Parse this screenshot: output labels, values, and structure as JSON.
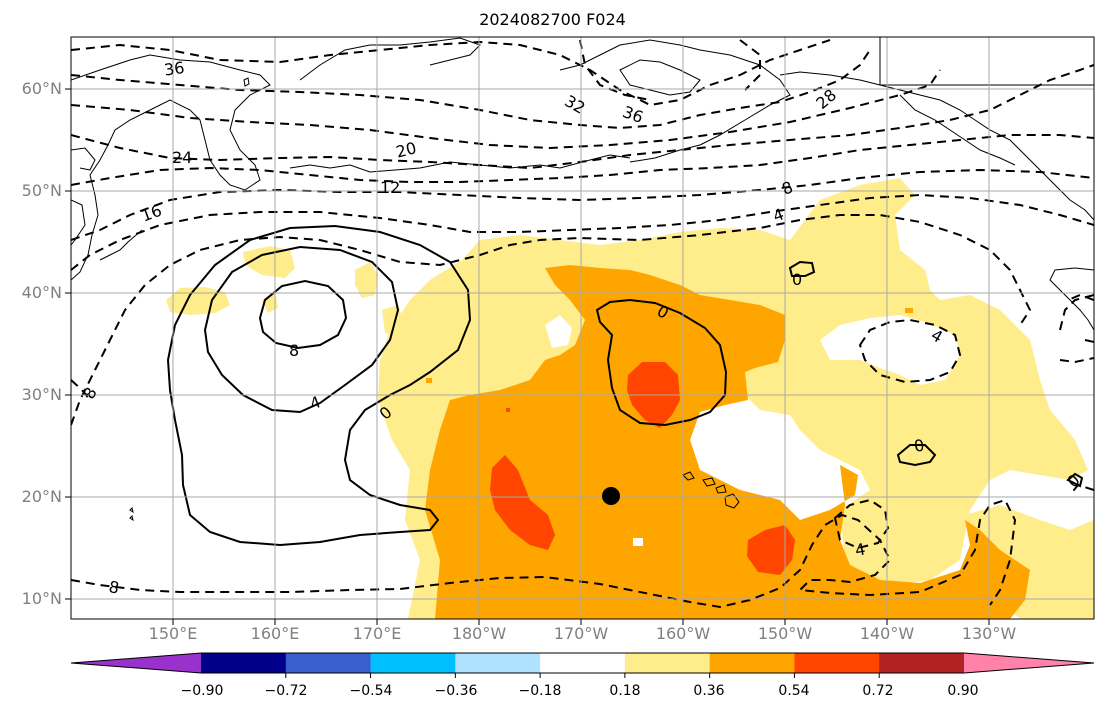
{
  "title": "2024082700 F024",
  "lat_labels": [
    "60°N",
    "50°N",
    "40°N",
    "30°N",
    "20°N",
    "10°N"
  ],
  "lon_labels": [
    "150°E",
    "160°E",
    "170°E",
    "180°W",
    "170°W",
    "160°W",
    "150°W",
    "140°W",
    "130°W"
  ],
  "colorbar": {
    "colors": [
      "#9932cc",
      "#00008b",
      "#3a5fcd",
      "#00bfff",
      "#b0e2ff",
      "#ffffff",
      "#ffec8b",
      "#ffa500",
      "#ff4500",
      "#b22222",
      "#ff82ab"
    ],
    "ticks": [
      "−0.90",
      "−0.72",
      "−0.54",
      "−0.36",
      "−0.18",
      "0.18",
      "0.36",
      "0.54",
      "0.72",
      "0.90"
    ]
  },
  "contour_labels": [
    {
      "text": "36"
    },
    {
      "text": "32"
    },
    {
      "text": "36"
    },
    {
      "text": "28"
    },
    {
      "text": "24"
    },
    {
      "text": "20"
    },
    {
      "text": "16"
    },
    {
      "text": "12"
    },
    {
      "text": "8"
    },
    {
      "text": "4"
    },
    {
      "text": "8"
    },
    {
      "text": "4"
    },
    {
      "text": "0"
    },
    {
      "text": "0"
    },
    {
      "text": "0"
    },
    {
      "text": "4"
    },
    {
      "text": "0"
    },
    {
      "text": "4"
    },
    {
      "text": "8"
    },
    {
      "text": "8"
    },
    {
      "text": "0"
    }
  ],
  "marker": {
    "lat": 20,
    "lon": "167.5°W"
  }
}
